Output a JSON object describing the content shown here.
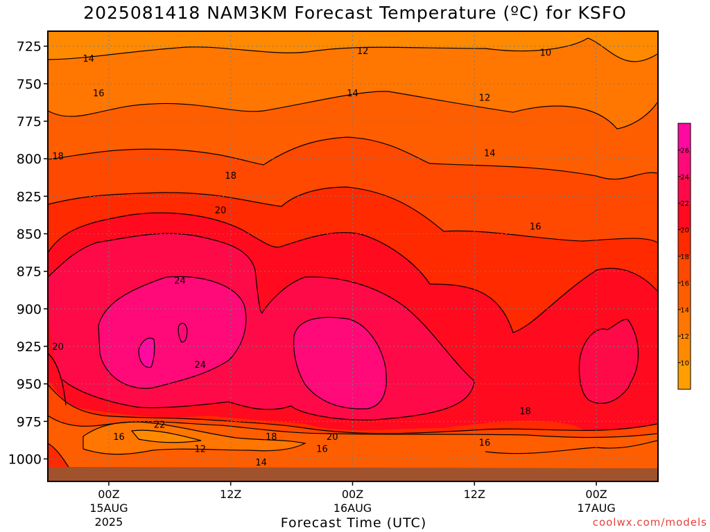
{
  "chart_data": {
    "type": "heatmap",
    "title": "2025081418 NAM3KM Forecast Temperature (ºC) for KSFO",
    "xlabel": "Forecast Time (UTC)",
    "ylabel": "",
    "x_range_hours": [
      -6,
      54
    ],
    "y_range": [
      715,
      1015
    ],
    "y_tick_labels": [
      {
        "value": 725,
        "label": "725"
      },
      {
        "value": 750,
        "label": "750"
      },
      {
        "value": 775,
        "label": "775"
      },
      {
        "value": 800,
        "label": "800"
      },
      {
        "value": 825,
        "label": "825"
      },
      {
        "value": 850,
        "label": "850"
      },
      {
        "value": 875,
        "label": "875"
      },
      {
        "value": 900,
        "label": "900"
      },
      {
        "value": 925,
        "label": "925"
      },
      {
        "value": 950,
        "label": "950"
      },
      {
        "value": 975,
        "label": "975"
      },
      {
        "value": 1000,
        "label": "1000"
      }
    ],
    "x_tick_labels": [
      {
        "hour": 0,
        "lines": [
          "00Z",
          "15AUG",
          "2025"
        ]
      },
      {
        "hour": 12,
        "lines": [
          "12Z"
        ]
      },
      {
        "hour": 24,
        "lines": [
          "00Z",
          "16AUG"
        ]
      },
      {
        "hour": 36,
        "lines": [
          "12Z"
        ]
      },
      {
        "hour": 48,
        "lines": [
          "00Z",
          "17AUG"
        ]
      }
    ],
    "colorbar": {
      "levels": [
        8,
        10,
        12,
        14,
        16,
        18,
        20,
        22,
        24,
        26,
        28
      ],
      "labels": [
        "10",
        "12",
        "14",
        "16",
        "18",
        "20",
        "22",
        "24",
        "26"
      ],
      "colors": [
        "#FF9E00",
        "#FF8A00",
        "#FF7600",
        "#FF5E00",
        "#FF4800",
        "#FF2A00",
        "#FF0A1E",
        "#FF0A48",
        "#FF0A78",
        "#FF0AA0"
      ]
    },
    "contour_labels": [
      {
        "value": "14",
        "hour": -2.0,
        "p": 733
      },
      {
        "value": "12",
        "hour": 25.0,
        "p": 728
      },
      {
        "value": "10",
        "hour": 43.0,
        "p": 729
      },
      {
        "value": "16",
        "hour": -1.0,
        "p": 756
      },
      {
        "value": "14",
        "hour": 24.0,
        "p": 756
      },
      {
        "value": "12",
        "hour": 37.0,
        "p": 759
      },
      {
        "value": "18",
        "hour": -5.0,
        "p": 798
      },
      {
        "value": "18",
        "hour": 12.0,
        "p": 811
      },
      {
        "value": "14",
        "hour": 37.5,
        "p": 796
      },
      {
        "value": "20",
        "hour": 11.0,
        "p": 834
      },
      {
        "value": "16",
        "hour": 42.0,
        "p": 845
      },
      {
        "value": "24",
        "hour": 7.0,
        "p": 881
      },
      {
        "value": "24",
        "hour": 9.0,
        "p": 937
      },
      {
        "value": "22",
        "hour": 5.0,
        "p": 977
      },
      {
        "value": "20",
        "hour": -5.0,
        "p": 925
      },
      {
        "value": "18",
        "hour": 41.0,
        "p": 968
      },
      {
        "value": "16",
        "hour": 1.0,
        "p": 985
      },
      {
        "value": "12",
        "hour": 9.0,
        "p": 993
      },
      {
        "value": "18",
        "hour": 16.0,
        "p": 985
      },
      {
        "value": "16",
        "hour": 21.0,
        "p": 993
      },
      {
        "value": "20",
        "hour": 22.0,
        "p": 985
      },
      {
        "value": "16",
        "hour": 37.0,
        "p": 989
      },
      {
        "value": "14",
        "hour": 15.0,
        "p": 1002
      }
    ],
    "grid": "dotted",
    "legend": "right colorbar"
  },
  "credit": "coolwx.com/models"
}
